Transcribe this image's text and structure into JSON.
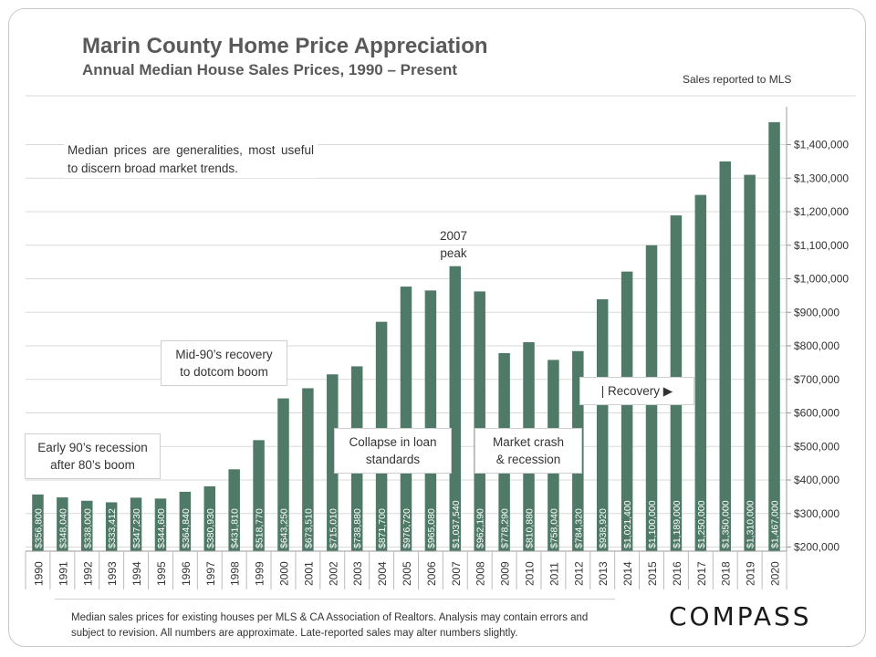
{
  "header": {
    "title": "Marin County Home Price Appreciation",
    "subtitle": "Annual Median House Sales Prices, 1990 – Present",
    "source_note": "Sales reported to MLS"
  },
  "annotations": {
    "median_note": "Median prices are generalities, most useful to discern broad market trends.",
    "peak": "2007\npeak",
    "mid90s": "Mid-90’s recovery\nto dotcom boom",
    "early90s": "Early 90’s recession\nafter 80’s boom",
    "collapse": "Collapse in loan\nstandards",
    "crash": "Market crash\n& recession",
    "recovery": "| Recovery ▶"
  },
  "footer": {
    "text": "Median sales prices for existing houses per MLS & CA Association of Realtors. Analysis may contain errors and subject to revision. All numbers are approximate. Late-reported sales may alter numbers slightly.",
    "logo": "COMPASS"
  },
  "colors": {
    "bar": "#4f7a67",
    "bar_label": "#ffffff",
    "grid": "#d9d9d9",
    "axis_text": "#333333"
  },
  "chart_data": {
    "type": "bar",
    "title": "Marin County Home Price Appreciation",
    "subtitle": "Annual Median House Sales Prices, 1990 – Present",
    "xlabel": "",
    "ylabel": "",
    "ylim": [
      200000,
      1500000
    ],
    "y_axis_side": "right",
    "grid": true,
    "yticks": [
      200000,
      300000,
      400000,
      500000,
      600000,
      700000,
      800000,
      900000,
      1000000,
      1100000,
      1200000,
      1300000,
      1400000
    ],
    "ytick_labels": [
      "$200,000",
      "$300,000",
      "$400,000",
      "$500,000",
      "$600,000",
      "$700,000",
      "$800,000",
      "$900,000",
      "$1,000,000",
      "$1,100,000",
      "$1,200,000",
      "$1,300,000",
      "$1,400,000"
    ],
    "categories": [
      "1990",
      "1991",
      "1992",
      "1993",
      "1994",
      "1995",
      "1996",
      "1997",
      "1998",
      "1999",
      "2000",
      "2001",
      "2002",
      "2003",
      "2004",
      "2005",
      "2006",
      "2007",
      "2008",
      "2009",
      "2010",
      "2011",
      "2012",
      "2013",
      "2014",
      "2015",
      "2016",
      "2017",
      "2018",
      "2019",
      "2020"
    ],
    "values": [
      356800,
      348040,
      338000,
      333412,
      347230,
      344600,
      364840,
      380930,
      431810,
      518770,
      643250,
      673510,
      715010,
      738880,
      871700,
      976720,
      965080,
      1037540,
      962190,
      778290,
      810880,
      758040,
      784320,
      938920,
      1021400,
      1100000,
      1189000,
      1250000,
      1350000,
      1310000,
      1467000
    ],
    "data_labels": [
      "$356,800",
      "$348,040",
      "$338,000",
      "$333,412",
      "$347,230",
      "$344,600",
      "$364,840",
      "$380,930",
      "$431,810",
      "$518,770",
      "$643,250",
      "$673,510",
      "$715,010",
      "$738,880",
      "$871,700",
      "$976,720",
      "$965,080",
      "$1,037,540",
      "$962,190",
      "$778,290",
      "$810,880",
      "$758,040",
      "$784,320",
      "$938,920",
      "$1,021,400",
      "$1,100,000",
      "$1,189,000",
      "$1,250,000",
      "$1,350,000",
      "$1,310,000",
      "$1,467,000"
    ]
  }
}
